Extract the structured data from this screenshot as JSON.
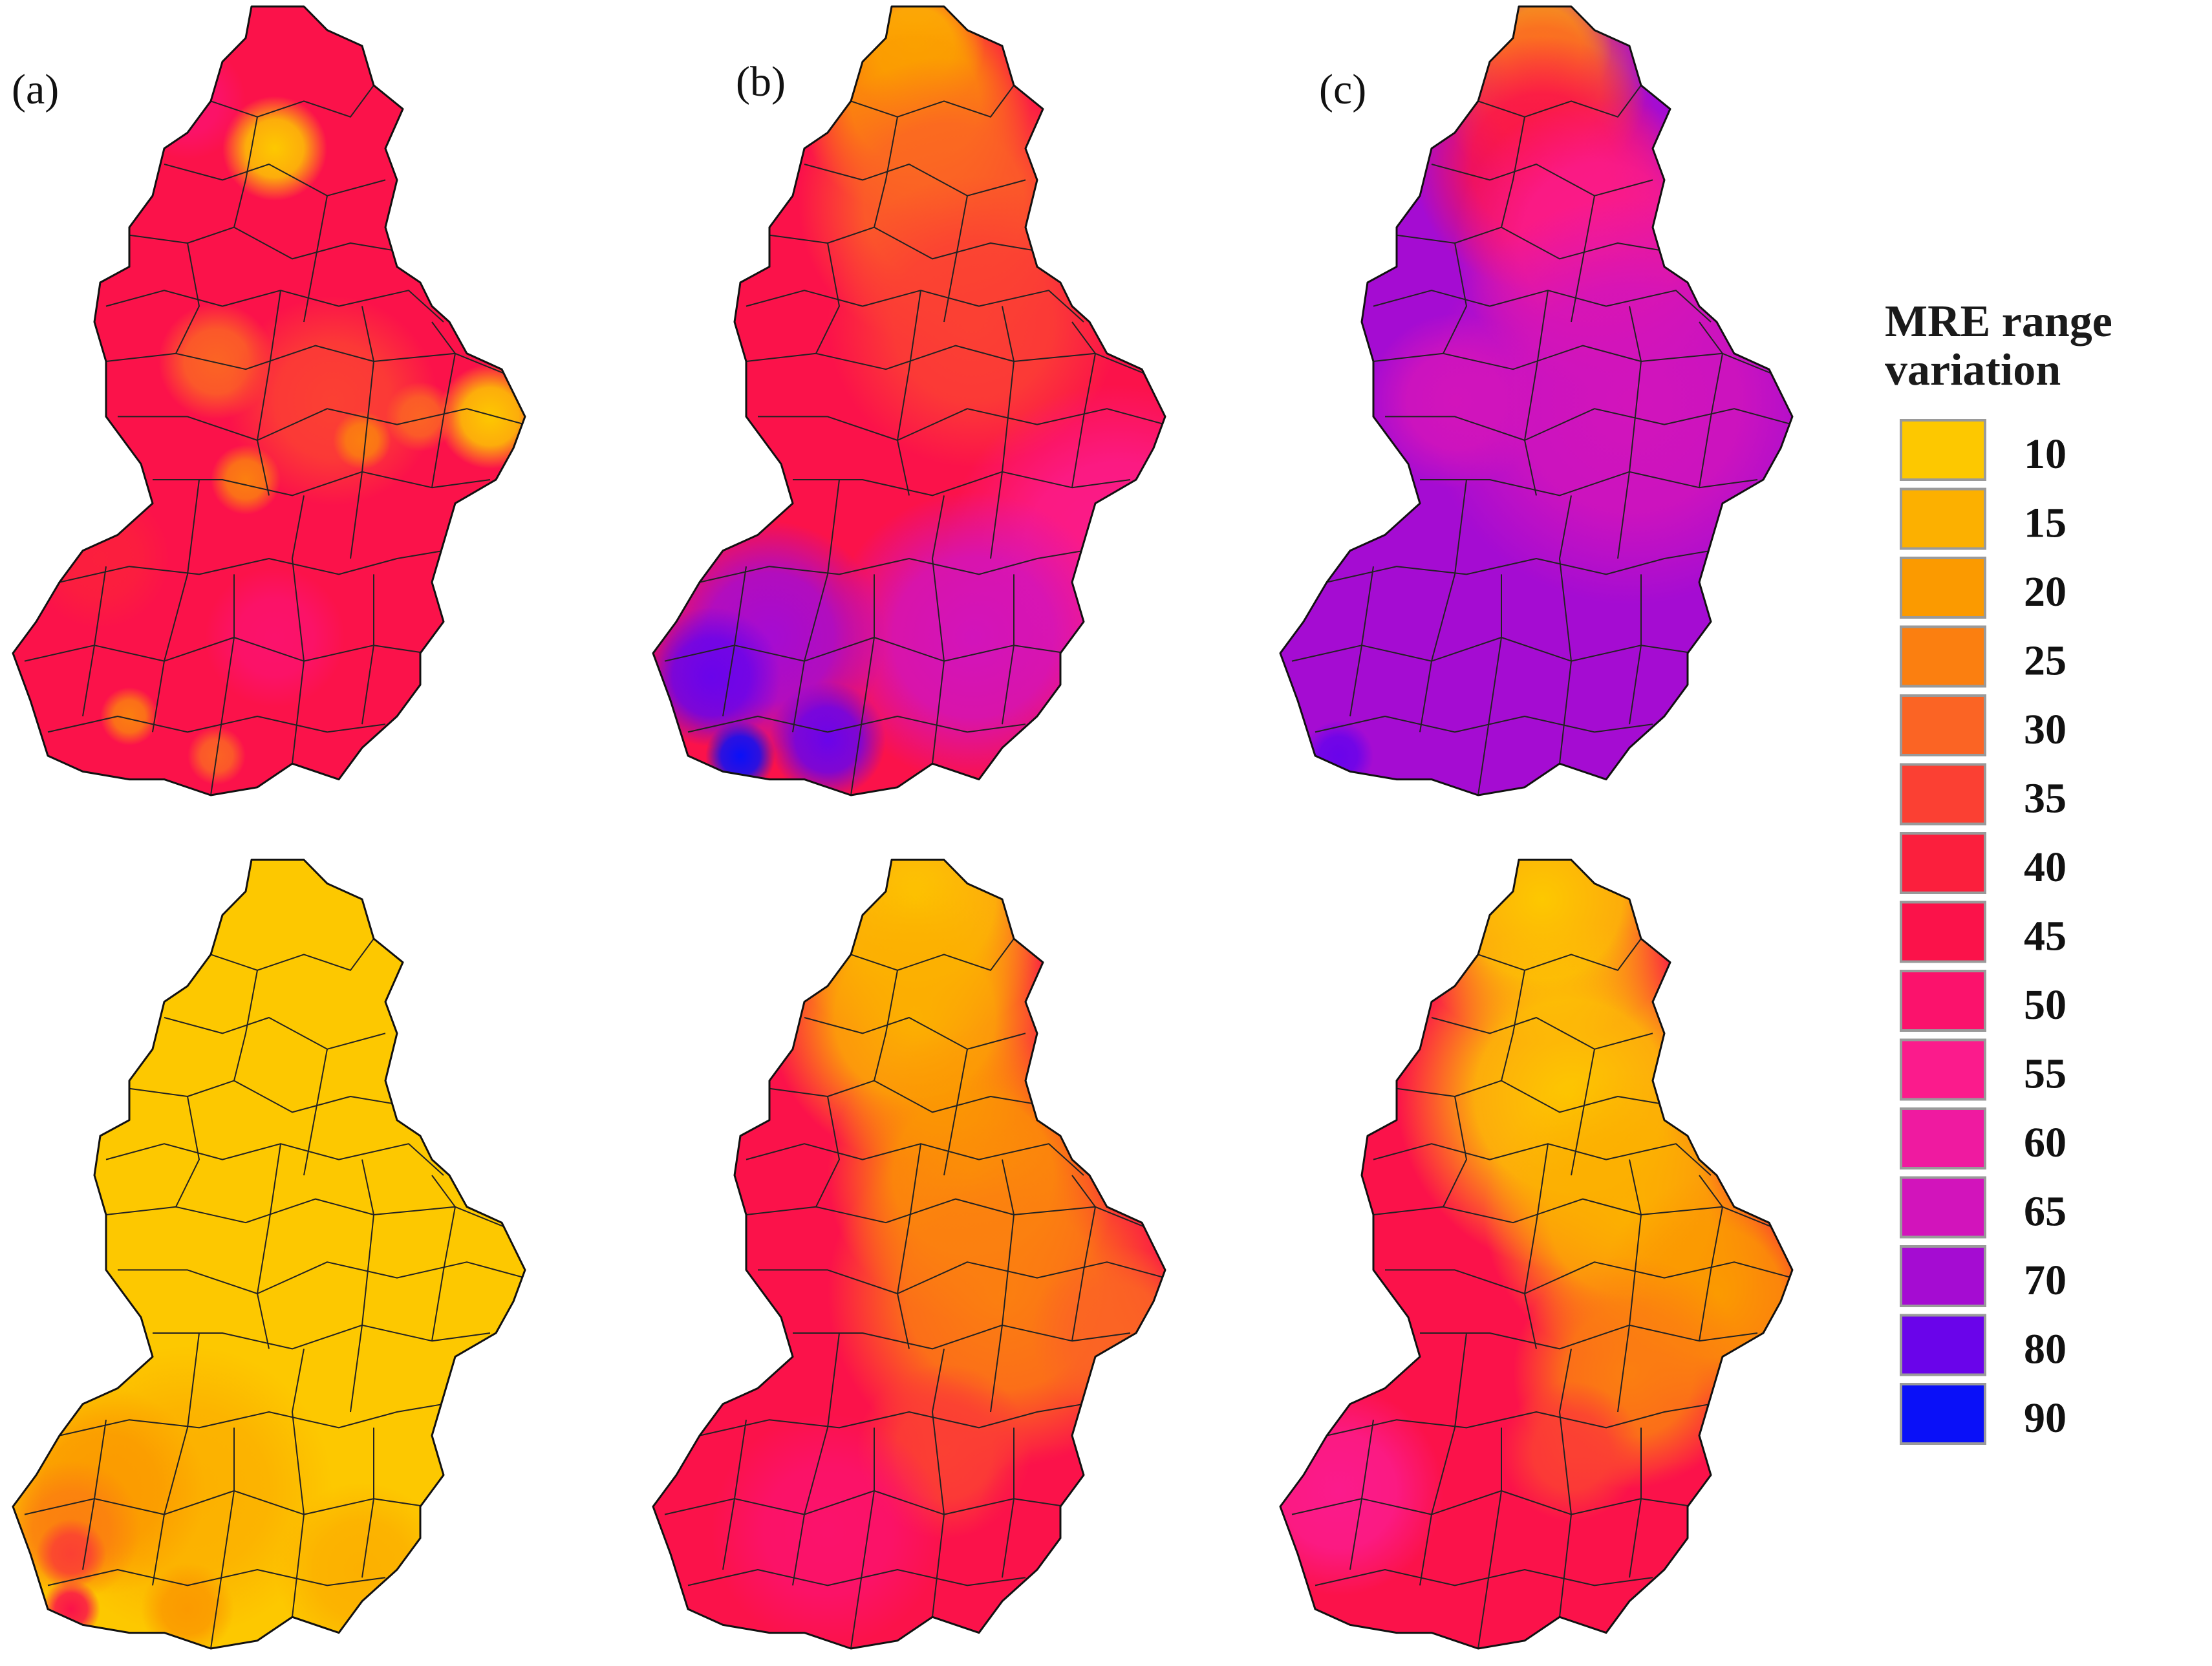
{
  "panel_labels": [
    "(a)",
    "(b)",
    "(c)"
  ],
  "legend": {
    "title_lines": [
      "MRE range",
      "variation"
    ],
    "items": [
      {
        "label": "10",
        "color": "#fdc800"
      },
      {
        "label": "15",
        "color": "#fcb000"
      },
      {
        "label": "20",
        "color": "#fb9a00"
      },
      {
        "label": "25",
        "color": "#fb7f10"
      },
      {
        "label": "30",
        "color": "#fb6424"
      },
      {
        "label": "35",
        "color": "#fb4033"
      },
      {
        "label": "40",
        "color": "#fb1f3d"
      },
      {
        "label": "45",
        "color": "#fb124a"
      },
      {
        "label": "50",
        "color": "#fb126c"
      },
      {
        "label": "55",
        "color": "#fb1b8c"
      },
      {
        "label": "60",
        "color": "#ef1aa0"
      },
      {
        "label": "65",
        "color": "#d214bb"
      },
      {
        "label": "70",
        "color": "#a50cd2"
      },
      {
        "label": "80",
        "color": "#6a04ea"
      },
      {
        "label": "90",
        "color": "#0a10f8"
      }
    ]
  },
  "maps": [
    {
      "id": "top-a",
      "base": "#fb124a",
      "spots": [
        {
          "u": 0.45,
          "v": 0.18,
          "r": 0.09,
          "color": "#fdc800"
        },
        {
          "u": 0.3,
          "v": 0.12,
          "r": 0.1,
          "color": "#fb126c"
        },
        {
          "u": 0.82,
          "v": 0.52,
          "r": 0.09,
          "color": "#fdc800"
        },
        {
          "u": 0.35,
          "v": 0.45,
          "r": 0.1,
          "color": "#fb6424"
        },
        {
          "u": 0.55,
          "v": 0.5,
          "r": 0.18,
          "color": "#fb4033"
        },
        {
          "u": 0.4,
          "v": 0.6,
          "r": 0.06,
          "color": "#fb7f10"
        },
        {
          "u": 0.6,
          "v": 0.55,
          "r": 0.05,
          "color": "#fb7f10"
        },
        {
          "u": 0.7,
          "v": 0.52,
          "r": 0.06,
          "color": "#fb6424"
        },
        {
          "u": 0.15,
          "v": 0.7,
          "r": 0.12,
          "color": "#fb1f3d"
        },
        {
          "u": 0.45,
          "v": 0.8,
          "r": 0.12,
          "color": "#fb126c"
        },
        {
          "u": 0.2,
          "v": 0.9,
          "r": 0.05,
          "color": "#fb7f10"
        },
        {
          "u": 0.35,
          "v": 0.95,
          "r": 0.05,
          "color": "#fb6424"
        }
      ]
    },
    {
      "id": "top-b",
      "base": "#fb124a",
      "spots": [
        {
          "u": 0.45,
          "v": 0.05,
          "r": 0.12,
          "color": "#fdc800"
        },
        {
          "u": 0.45,
          "v": 0.12,
          "r": 0.2,
          "color": "#fb9a00"
        },
        {
          "u": 0.5,
          "v": 0.25,
          "r": 0.25,
          "color": "#fb6424"
        },
        {
          "u": 0.55,
          "v": 0.4,
          "r": 0.25,
          "color": "#fb4033"
        },
        {
          "u": 0.8,
          "v": 0.7,
          "r": 0.3,
          "color": "#fb1b8c"
        },
        {
          "u": 0.55,
          "v": 0.8,
          "r": 0.25,
          "color": "#d214bb"
        },
        {
          "u": 0.2,
          "v": 0.8,
          "r": 0.2,
          "color": "#a50cd2"
        },
        {
          "u": 0.1,
          "v": 0.85,
          "r": 0.12,
          "color": "#6a04ea"
        },
        {
          "u": 0.15,
          "v": 0.95,
          "r": 0.06,
          "color": "#0a10f8"
        },
        {
          "u": 0.3,
          "v": 0.93,
          "r": 0.1,
          "color": "#6a04ea"
        }
      ]
    },
    {
      "id": "top-c",
      "base": "#a50cd2",
      "spots": [
        {
          "u": 0.45,
          "v": 0.05,
          "r": 0.12,
          "color": "#fdc800"
        },
        {
          "u": 0.45,
          "v": 0.1,
          "r": 0.18,
          "color": "#fb6424"
        },
        {
          "u": 0.45,
          "v": 0.2,
          "r": 0.22,
          "color": "#fb124a"
        },
        {
          "u": 0.55,
          "v": 0.3,
          "r": 0.25,
          "color": "#fb1b8c"
        },
        {
          "u": 0.6,
          "v": 0.5,
          "r": 0.35,
          "color": "#d214bb"
        },
        {
          "u": 0.3,
          "v": 0.5,
          "r": 0.15,
          "color": "#d214bb"
        },
        {
          "u": 0.1,
          "v": 0.95,
          "r": 0.06,
          "color": "#6a04ea"
        },
        {
          "u": 0.9,
          "v": 0.8,
          "r": 0.05,
          "color": "#d214bb"
        }
      ]
    },
    {
      "id": "bottom-a",
      "base": "#fdc800",
      "spots": [
        {
          "u": 0.3,
          "v": 0.8,
          "r": 0.25,
          "color": "#fcb000"
        },
        {
          "u": 0.15,
          "v": 0.8,
          "r": 0.18,
          "color": "#fb9a00"
        },
        {
          "u": 0.1,
          "v": 0.85,
          "r": 0.12,
          "color": "#fb7f10"
        },
        {
          "u": 0.1,
          "v": 0.88,
          "r": 0.06,
          "color": "#fb4033"
        },
        {
          "u": 0.1,
          "v": 0.95,
          "r": 0.05,
          "color": "#fb124a"
        },
        {
          "u": 0.3,
          "v": 0.95,
          "r": 0.08,
          "color": "#fb9a00"
        },
        {
          "u": 0.6,
          "v": 0.9,
          "r": 0.15,
          "color": "#fcb000"
        }
      ]
    },
    {
      "id": "bottom-b",
      "base": "#fb124a",
      "spots": [
        {
          "u": 0.45,
          "v": 0.05,
          "r": 0.25,
          "color": "#fdc800"
        },
        {
          "u": 0.45,
          "v": 0.2,
          "r": 0.25,
          "color": "#fcb000"
        },
        {
          "u": 0.55,
          "v": 0.4,
          "r": 0.25,
          "color": "#fb9a00"
        },
        {
          "u": 0.6,
          "v": 0.55,
          "r": 0.3,
          "color": "#fb7f10"
        },
        {
          "u": 0.8,
          "v": 0.6,
          "r": 0.15,
          "color": "#fb6424"
        },
        {
          "u": 0.5,
          "v": 0.75,
          "r": 0.15,
          "color": "#fb4033"
        },
        {
          "u": 0.3,
          "v": 0.85,
          "r": 0.2,
          "color": "#fb126c"
        },
        {
          "u": 0.7,
          "v": 0.85,
          "r": 0.15,
          "color": "#fb124a"
        }
      ]
    },
    {
      "id": "bottom-c",
      "base": "#fb124a",
      "spots": [
        {
          "u": 0.45,
          "v": 0.05,
          "r": 0.25,
          "color": "#fdc800"
        },
        {
          "u": 0.5,
          "v": 0.3,
          "r": 0.3,
          "color": "#fdc800"
        },
        {
          "u": 0.6,
          "v": 0.45,
          "r": 0.25,
          "color": "#fcb000"
        },
        {
          "u": 0.75,
          "v": 0.55,
          "r": 0.2,
          "color": "#fb9a00"
        },
        {
          "u": 0.6,
          "v": 0.65,
          "r": 0.2,
          "color": "#fb7f10"
        },
        {
          "u": 0.5,
          "v": 0.75,
          "r": 0.12,
          "color": "#fb4033"
        },
        {
          "u": 0.1,
          "v": 0.8,
          "r": 0.18,
          "color": "#fb1b8c"
        },
        {
          "u": 0.7,
          "v": 0.85,
          "r": 0.12,
          "color": "#fb124a"
        }
      ]
    }
  ]
}
